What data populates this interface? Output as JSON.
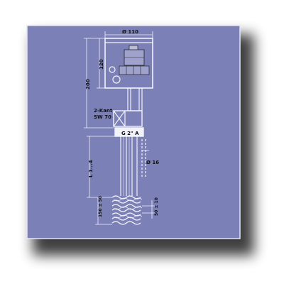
{
  "colors": {
    "panel": "#7b80b6",
    "panel_border": "#e6e6f4",
    "line": "#f2f2fa",
    "ink": "#101018",
    "shadow": "#000000"
  },
  "dimensions": {
    "head_diameter": "Ø 110",
    "height_top": "120",
    "height_total": "200",
    "wrench_label_1": "2-Kant",
    "wrench_label_2": "SW 70",
    "thread": "G 2\" A",
    "tube_diameter": "Ø 16",
    "insertion_length": "L 1...4",
    "coil_length": "150 ± 50",
    "coil_offset": "50 ± 10"
  }
}
